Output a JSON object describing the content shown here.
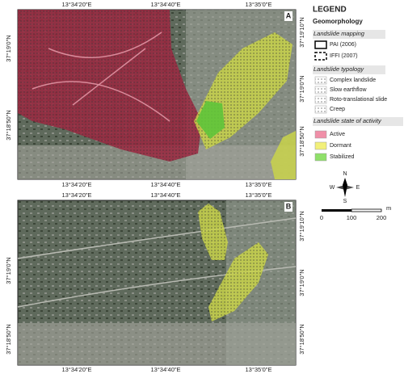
{
  "panels": [
    {
      "label": "A",
      "top_labels": [
        "13°34'20\"E",
        "13°34'40\"E",
        "13°35'0\"E"
      ],
      "bottom_labels": [
        "13°34'20\"E",
        "13°34'40\"E",
        "13°35'0\"E"
      ],
      "left_labels": [
        "37°19'0\"N",
        "37°18'50\"N"
      ],
      "right_labels": [
        "37°19'10\"N",
        "37°19'0\"N",
        "37°18'50\"N"
      ]
    },
    {
      "label": "B",
      "top_labels": [
        "13°34'20\"E",
        "13°34'40\"E",
        "13°35'0\"E"
      ],
      "bottom_labels": [
        "13°34'20\"E",
        "13°34'40\"E",
        "13°35'0\"E"
      ],
      "left_labels": [
        "37°19'0\"N",
        "37°18'50\"N"
      ],
      "right_labels": [
        "37°19'10\"N",
        "37°19'0\"N",
        "37°18'50\"N"
      ]
    }
  ],
  "legend": {
    "title": "LEGEND",
    "subtitle": "Geomorphology",
    "mapping": {
      "heading": "Landslide mapping",
      "items": [
        "PAI (2006)",
        "IFFI (2007)"
      ]
    },
    "typology": {
      "heading": "Landslide typology",
      "items": [
        "Complex landslide",
        "Slow earthflow",
        "Roto-translational slide",
        "Creep"
      ]
    },
    "activity": {
      "heading": "Landslide state of activity",
      "items": [
        "Active",
        "Dormant",
        "Stabilized"
      ]
    }
  },
  "compass": {
    "n": "N",
    "e": "E",
    "s": "S",
    "w": "W"
  },
  "scale": {
    "labels": [
      "0",
      "100",
      "200"
    ],
    "unit": "m"
  }
}
